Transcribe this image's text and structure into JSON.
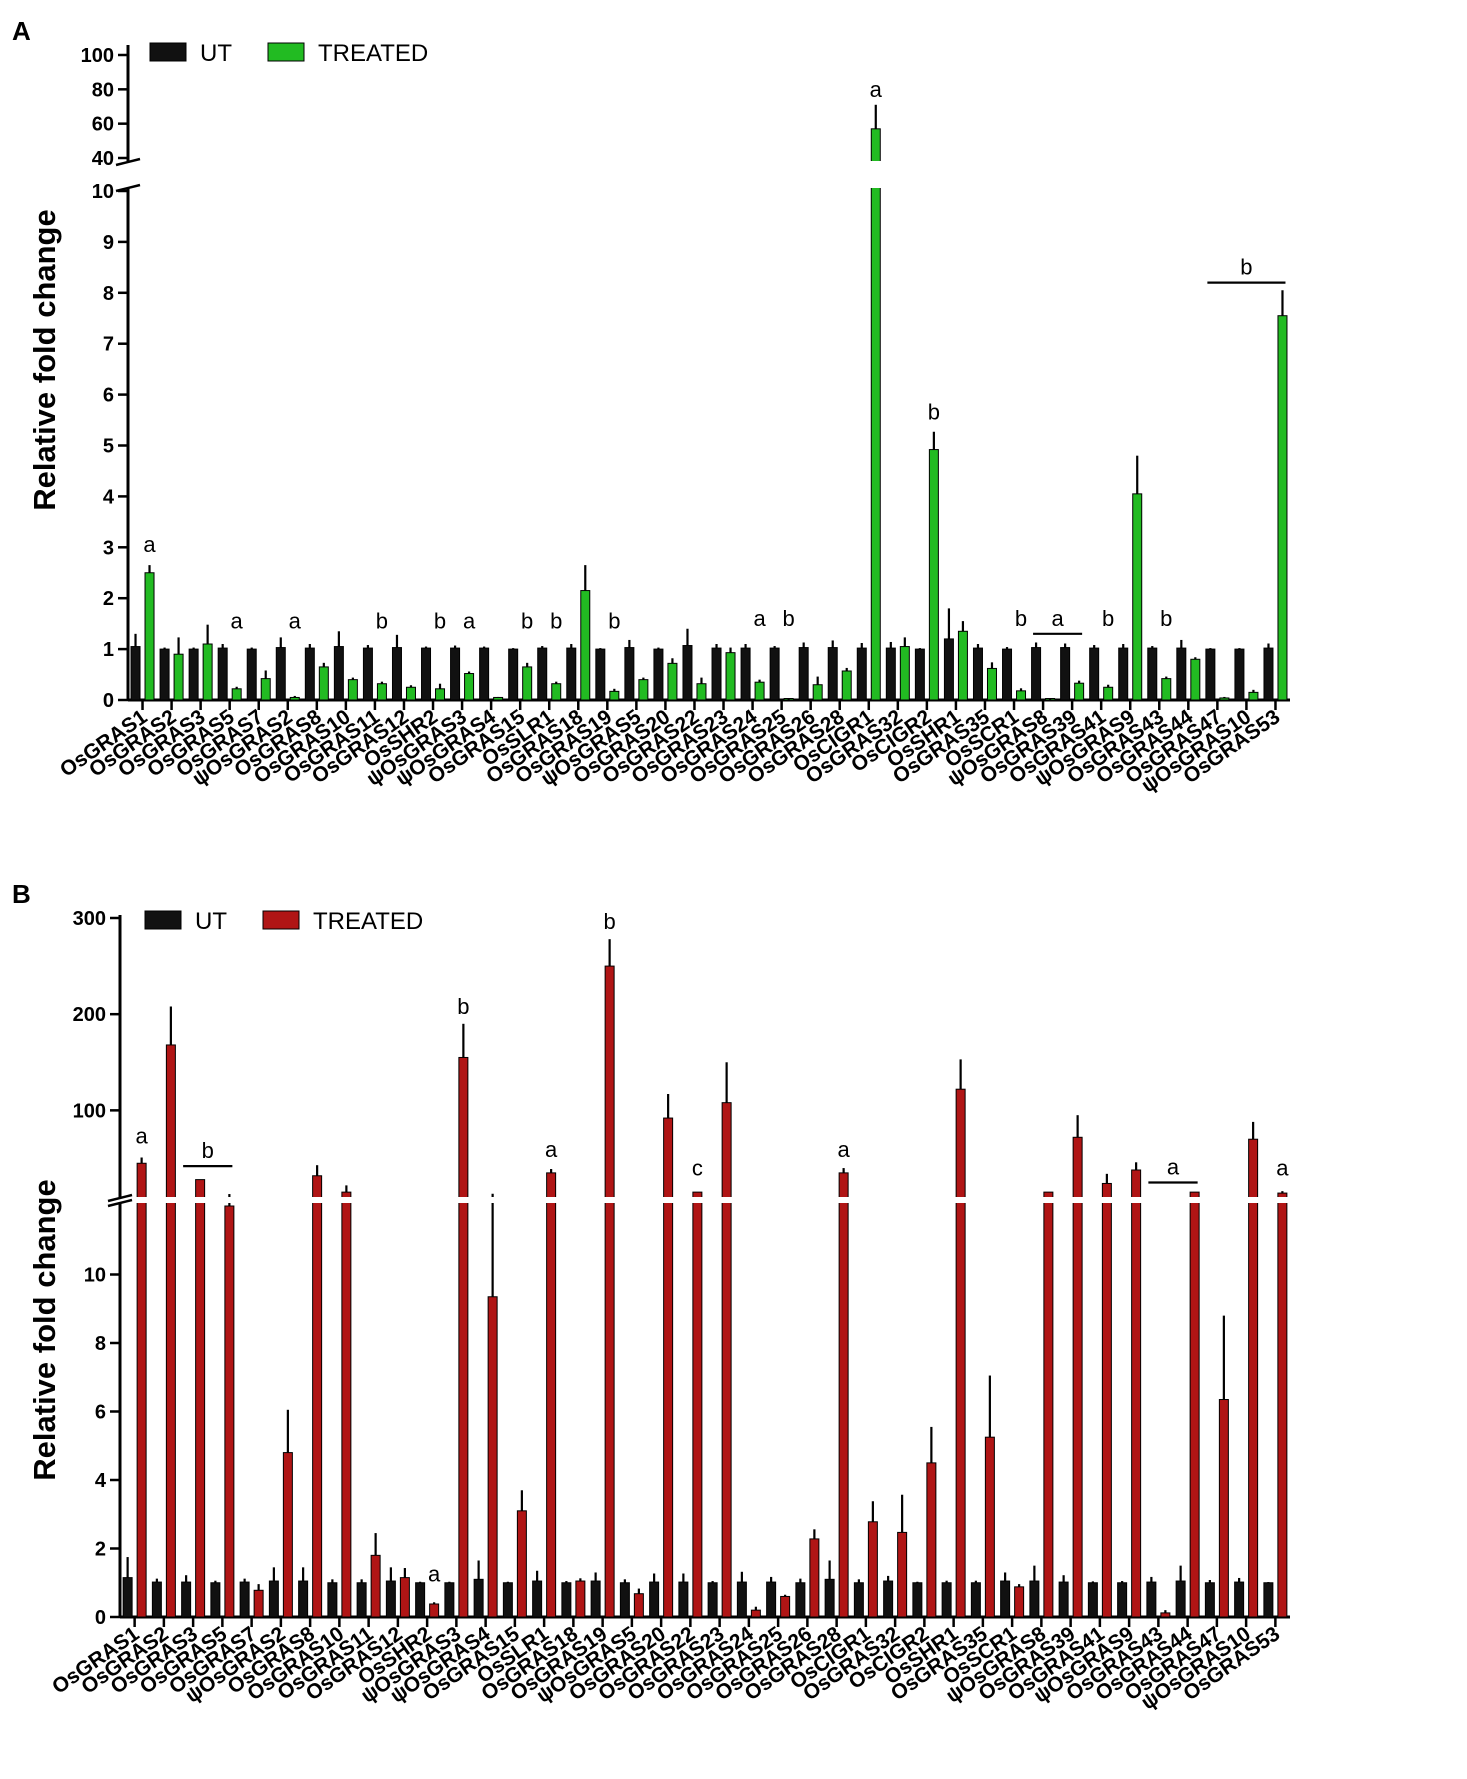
{
  "chart_data": [
    {
      "type": "bar",
      "panel": "A",
      "ylabel": "Relative fold change",
      "axis_break": [
        10,
        40
      ],
      "ylim_lower": [
        0,
        10
      ],
      "ylim_upper": [
        40,
        100
      ],
      "yticks_lower": [
        "0",
        "1",
        "2",
        "3",
        "4",
        "5",
        "6",
        "7",
        "8",
        "9",
        "10"
      ],
      "yticks_upper": [
        "40",
        "60",
        "80",
        "100"
      ],
      "categories": [
        "OsGRAS1",
        "OsGRAS2",
        "OsGRAS3",
        "OsGRAS5",
        "OsGRAS7",
        "ψOsGRAS2",
        "OsGRAS8",
        "OsGRAS10",
        "OsGRAS11",
        "OsGRAS12",
        "OsSHR2",
        "ψOsGRAS3",
        "ψOsGRAS4",
        "OsGRAS15",
        "OsSLR1",
        "OsGRAS18",
        "OsGRAS19",
        "ψOsGRAS5",
        "OsGRAS20",
        "OsGRAS22",
        "OsGRAS23",
        "OsGRAS24",
        "OsGRAS25",
        "OsGRAS26",
        "OsGRAS28",
        "OsCIGR1",
        "OsGRAS32",
        "OsCIGR2",
        "OsSHR1",
        "OsGRAS35",
        "OsSCR1",
        "ψOsGRAS8",
        "OsGRAS39",
        "OsGRAS41",
        "ψOsGRAS9",
        "OsGRAS43",
        "OsGRAS44",
        "OsGRAS47",
        "ψOsGRAS10",
        "OsGRAS53"
      ],
      "legend": [
        {
          "label": "UT",
          "color": "#111111"
        },
        {
          "label": "TREATED",
          "color": "#22bb22"
        }
      ],
      "series": [
        {
          "name": "UT",
          "color": "#111111",
          "values": [
            1.05,
            1.0,
            1.0,
            1.02,
            1.0,
            1.03,
            1.02,
            1.05,
            1.02,
            1.03,
            1.02,
            1.02,
            1.02,
            1.0,
            1.02,
            1.02,
            1.0,
            1.03,
            1.0,
            1.07,
            1.02,
            1.02,
            1.02,
            1.03,
            1.03,
            1.02,
            1.02,
            1.0,
            1.2,
            1.02,
            1.0,
            1.03,
            1.03,
            1.02,
            1.02,
            1.02,
            1.02,
            1.0,
            1.0,
            1.02
          ],
          "errors": [
            0.25,
            0.03,
            0.03,
            0.08,
            0.03,
            0.2,
            0.08,
            0.3,
            0.06,
            0.25,
            0.03,
            0.05,
            0.03,
            0.02,
            0.04,
            0.08,
            0.02,
            0.15,
            0.03,
            0.33,
            0.08,
            0.08,
            0.04,
            0.1,
            0.14,
            0.1,
            0.12,
            0.02,
            0.6,
            0.08,
            0.04,
            0.1,
            0.08,
            0.06,
            0.08,
            0.04,
            0.16,
            0.02,
            0.02,
            0.09
          ]
        },
        {
          "name": "TREATED",
          "color": "#22bb22",
          "values": [
            2.5,
            0.9,
            1.1,
            0.22,
            0.42,
            0.05,
            0.65,
            0.4,
            0.32,
            0.25,
            0.22,
            0.52,
            0.05,
            0.65,
            0.32,
            2.15,
            0.17,
            0.4,
            0.72,
            0.32,
            0.93,
            0.35,
            0.01,
            0.3,
            0.57,
            57,
            1.05,
            4.92,
            1.35,
            0.62,
            0.18,
            0.01,
            0.33,
            0.25,
            4.05,
            0.42,
            0.8,
            0.04,
            0.15,
            7.55
          ],
          "errors": [
            0.15,
            0.33,
            0.38,
            0.04,
            0.16,
            0.03,
            0.08,
            0.04,
            0.04,
            0.04,
            0.1,
            0.04,
            0.01,
            0.08,
            0.04,
            0.5,
            0.05,
            0.04,
            0.1,
            0.12,
            0.1,
            0.05,
            0.01,
            0.16,
            0.06,
            14,
            0.18,
            0.35,
            0.2,
            0.12,
            0.05,
            0.01,
            0.05,
            0.05,
            0.75,
            0.04,
            0.04,
            0.02,
            0.05,
            0.5
          ]
        }
      ],
      "annotations": [
        {
          "text": "a",
          "category": 0,
          "level": 2.75
        },
        {
          "text": "a",
          "category": 3,
          "level": 1.25
        },
        {
          "text": "a",
          "category": 5,
          "level": 1.25
        },
        {
          "text": "b",
          "category": 8,
          "level": 1.25
        },
        {
          "text": "b",
          "category": 10,
          "level": 1.25
        },
        {
          "text": "a",
          "category": 11,
          "level": 1.25
        },
        {
          "text": "b",
          "category": 13,
          "level": 1.25
        },
        {
          "text": "b",
          "category": 14,
          "level": 1.25
        },
        {
          "text": "b",
          "category": 16,
          "level": 1.25
        },
        {
          "text": "a",
          "category": 21,
          "level": 1.3
        },
        {
          "text": "b",
          "category": 22,
          "level": 1.3
        },
        {
          "text": "a",
          "category": 25,
          "level": 71
        },
        {
          "text": "b",
          "category": 27,
          "level": 5.35
        },
        {
          "text": "b",
          "category": 30,
          "level": 1.3
        },
        {
          "text": "a",
          "category_span": [
            31,
            32
          ],
          "level": 1.3
        },
        {
          "text": "b",
          "category": 33,
          "level": 1.3
        },
        {
          "text": "b",
          "category": 35,
          "level": 1.3
        },
        {
          "text": "b",
          "category_span": [
            37,
            39
          ],
          "level": 8.2
        }
      ]
    },
    {
      "type": "bar",
      "panel": "B",
      "ylabel": "Relative fold change",
      "axis_break": [
        12,
        12
      ],
      "ylim_lower": [
        0,
        12
      ],
      "ylim_upper": [
        12,
        300
      ],
      "yticks_lower": [
        "0",
        "2",
        "4",
        "6",
        "8",
        "10"
      ],
      "yticks_upper": [
        "100",
        "200",
        "300"
      ],
      "categories": [
        "OsGRAS1",
        "OsGRAS2",
        "OsGRAS3",
        "OsGRAS5",
        "OsGRAS7",
        "ψOsGRAS2",
        "OsGRAS8",
        "OsGRAS10",
        "OsGRAS11",
        "OsGRAS12",
        "OsSHR2",
        "ψOsGRAS3",
        "ψOsGRAS4",
        "OsGRAS15",
        "OsSLR1",
        "OsGRAS18",
        "OsGRAS19",
        "ψOsGRAS5",
        "OsGRAS20",
        "OsGRAS22",
        "OsGRAS23",
        "OsGRAS24",
        "OsGRAS25",
        "OsGRAS26",
        "OsGRAS28",
        "OsCIGR1",
        "OsGRAS32",
        "OsCIGR2",
        "OsSHR1",
        "OsGRAS35",
        "OsSCR1",
        "ψOsGRAS8",
        "OsGRAS39",
        "OsGRAS41",
        "ψOsGRAS9",
        "OsGRAS43",
        "OsGRAS44",
        "OsGRAS47",
        "ψOsGRAS10",
        "OsGRAS53"
      ],
      "legend": [
        {
          "label": "UT",
          "color": "#111111"
        },
        {
          "label": "TREATED",
          "color": "#b01515"
        }
      ],
      "series": [
        {
          "name": "UT",
          "color": "#111111",
          "values": [
            1.15,
            1.02,
            1.02,
            1.0,
            1.02,
            1.05,
            1.05,
            1.0,
            1.0,
            1.05,
            1.0,
            1.0,
            1.1,
            1.0,
            1.05,
            1.0,
            1.05,
            1.0,
            1.02,
            1.02,
            1.0,
            1.02,
            1.02,
            1.0,
            1.1,
            1.0,
            1.05,
            1.0,
            1.0,
            1.0,
            1.05,
            1.05,
            1.02,
            1.0,
            1.0,
            1.02,
            1.05,
            1.0,
            1.02,
            1.0
          ],
          "errors": [
            0.6,
            0.1,
            0.2,
            0.06,
            0.1,
            0.4,
            0.4,
            0.1,
            0.1,
            0.4,
            0.03,
            0.03,
            0.55,
            0.03,
            0.3,
            0.05,
            0.25,
            0.1,
            0.25,
            0.25,
            0.05,
            0.3,
            0.15,
            0.12,
            0.55,
            0.1,
            0.15,
            0.03,
            0.06,
            0.06,
            0.25,
            0.45,
            0.2,
            0.04,
            0.05,
            0.15,
            0.45,
            0.08,
            0.12,
            0.02
          ]
        },
        {
          "name": "TREATED",
          "color": "#b01515",
          "values": [
            45,
            168,
            28,
            12,
            0.78,
            4.8,
            32,
            15,
            1.8,
            1.15,
            0.38,
            155,
            9.35,
            3.1,
            35,
            1.05,
            250,
            0.68,
            92,
            15,
            108,
            0.2,
            0.6,
            2.28,
            35,
            2.78,
            2.47,
            4.5,
            122,
            5.25,
            0.88,
            15,
            72,
            24,
            38,
            0.12,
            15,
            6.35,
            70,
            14
          ],
          "errors": [
            6,
            40,
            0,
            1,
            0.18,
            1.25,
            11,
            7,
            0.65,
            0.28,
            0.05,
            35,
            4,
            0.6,
            4,
            0.08,
            28,
            0.15,
            25,
            0,
            42,
            0.1,
            0.05,
            0.28,
            5,
            0.6,
            1.1,
            1.05,
            31,
            1.8,
            0.08,
            0,
            23,
            10,
            8,
            0.08,
            0,
            2.45,
            18,
            2
          ]
        }
      ],
      "annotations": [
        {
          "text": "a",
          "category": 0,
          "level": 57
        },
        {
          "text": "b",
          "category_span": [
            2,
            3
          ],
          "level": 42
        },
        {
          "text": "a",
          "category": 10,
          "level": 0.8
        },
        {
          "text": "b",
          "category": 11,
          "level": 192
        },
        {
          "text": "a",
          "category": 14,
          "level": 43
        },
        {
          "text": "b",
          "category": 16,
          "level": 280
        },
        {
          "text": "c",
          "category": 19,
          "level": 24
        },
        {
          "text": "a",
          "category": 24,
          "level": 43
        },
        {
          "text": "a",
          "category_span": [
            35,
            36
          ],
          "level": 25
        },
        {
          "text": "a",
          "category": 39,
          "level": 24
        }
      ]
    }
  ]
}
